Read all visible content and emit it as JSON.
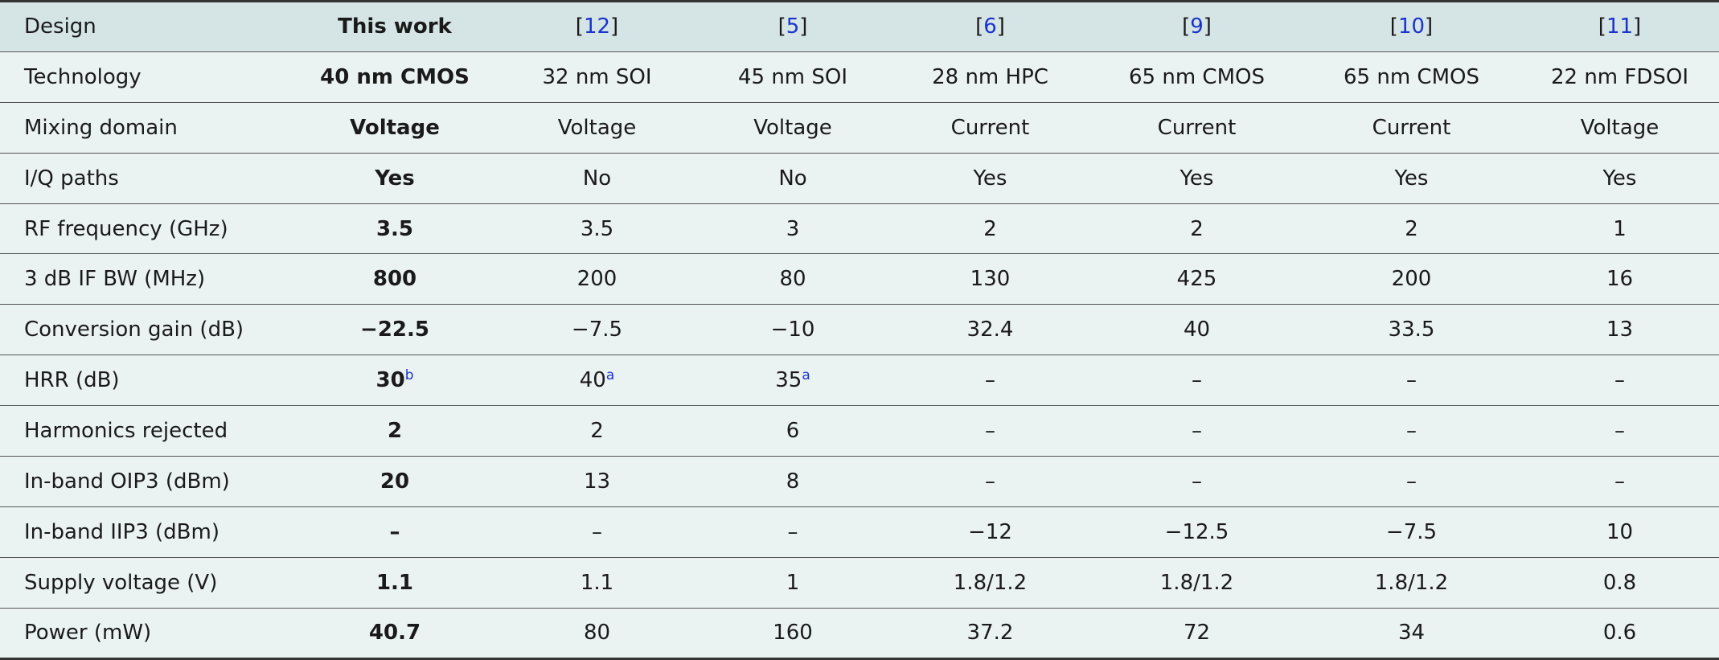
{
  "table": {
    "header": [
      "Design",
      "This work",
      "[12]",
      "[5]",
      "[6]",
      "[9]",
      "[10]",
      "[11]"
    ],
    "rows": [
      [
        "Technology",
        "40 nm CMOS",
        "32 nm SOI",
        "45 nm SOI",
        "28 nm HPC",
        "65 nm CMOS",
        "65 nm CMOS",
        "22 nm FDSOI"
      ],
      [
        "Mixing domain",
        "Voltage",
        "Voltage",
        "Voltage",
        "Current",
        "Current",
        "Current",
        "Voltage"
      ],
      [
        "I/Q paths",
        "Yes",
        "No",
        "No",
        "Yes",
        "Yes",
        "Yes",
        "Yes"
      ],
      [
        "RF frequency (GHz)",
        "3.5",
        "3.5",
        "3",
        "2",
        "2",
        "2",
        "1"
      ],
      [
        "3 dB IF BW (MHz)",
        "800",
        "200",
        "80",
        "130",
        "425",
        "200",
        "16"
      ],
      [
        "Conversion gain (dB)",
        "−22.5",
        "−7.5",
        "−10",
        "32.4",
        "40",
        "33.5",
        "13"
      ],
      [
        "HRR (dB)",
        {
          "text": "30",
          "note": "b"
        },
        {
          "text": "40",
          "note": "a"
        },
        {
          "text": "35",
          "note": "a"
        },
        "–",
        "–",
        "–",
        "–"
      ],
      [
        "Harmonics rejected",
        "2",
        "2",
        "6",
        "–",
        "–",
        "–",
        "–"
      ],
      [
        "In-band OIP3 (dBm)",
        "20",
        "13",
        "8",
        "–",
        "–",
        "–",
        "–"
      ],
      [
        "In-band IIP3 (dBm)",
        "–",
        "–",
        "–",
        "−12",
        "−12.5",
        "−7.5",
        "10"
      ],
      [
        "Supply voltage (V)",
        "1.1",
        "1.1",
        "1",
        "1.8/1.2",
        "1.8/1.2",
        "1.8/1.2",
        "0.8"
      ],
      [
        "Power (mW)",
        "40.7",
        "80",
        "160",
        "37.2",
        "72",
        "34",
        "0.6"
      ]
    ]
  }
}
